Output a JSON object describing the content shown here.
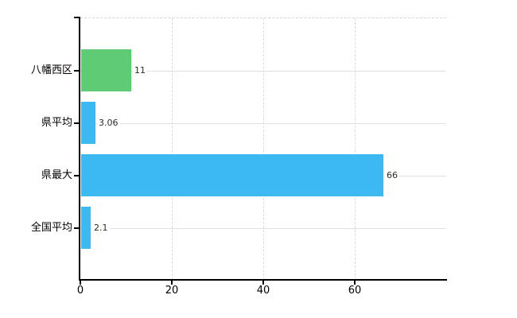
{
  "chart_data": {
    "type": "bar",
    "orientation": "horizontal",
    "title": "",
    "xlabel": "",
    "ylabel": "",
    "categories": [
      "八幡西区",
      "県平均",
      "県最大",
      "全国平均"
    ],
    "values": [
      11,
      3.06,
      66,
      2.1
    ],
    "value_labels": [
      "11",
      "3.06",
      "66",
      "2.1"
    ],
    "bar_colors": [
      "#5fcb75",
      "#3cb9f0",
      "#3cb9f0",
      "#3cb9f0"
    ],
    "xlim": [
      0,
      80
    ],
    "xticks": [
      0,
      20,
      40,
      60
    ],
    "xtick_labels": [
      "0",
      "20",
      "40",
      "60"
    ],
    "legend": "none",
    "grid": {
      "vertical_dashed_at_ticks": true,
      "horizontal_solid_at_categories": true,
      "plot_top_border_dashed": true
    },
    "colors": {
      "axis": "#000000",
      "gridline_horizontal": "#dbe4db",
      "gridline_vertical": "#d9d9d9",
      "plot_top_border": "#d6d6d6",
      "value_label_text": "#2b2b2b",
      "tick_label_text": "#000000",
      "category_label_text": "#000000",
      "background": "#ffffff"
    }
  }
}
